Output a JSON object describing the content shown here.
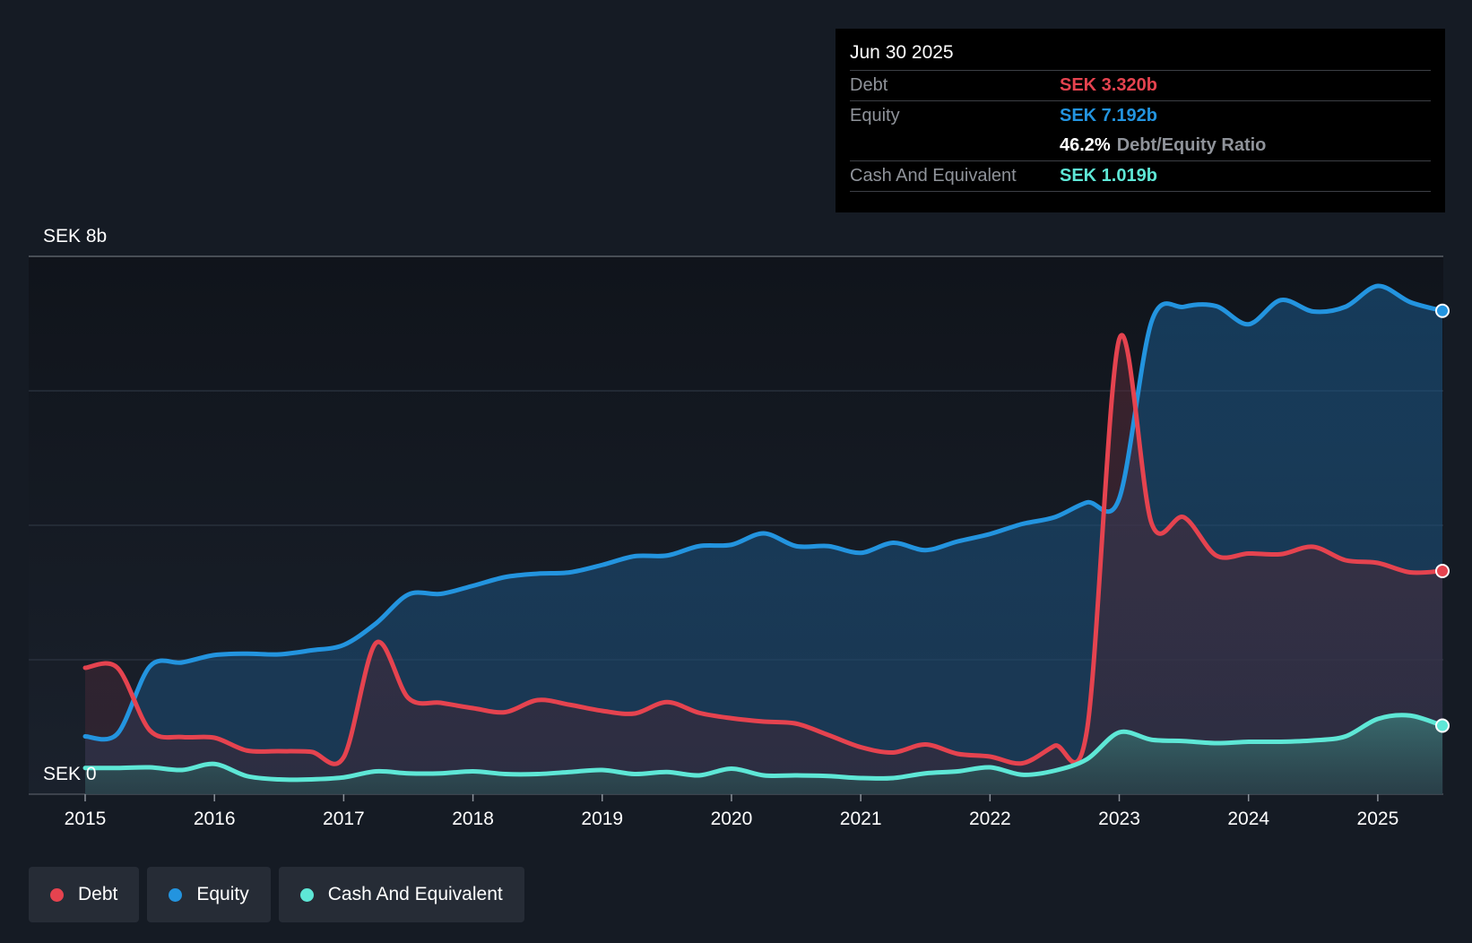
{
  "chart_data": {
    "type": "area",
    "title": "",
    "currency": "SEK",
    "y_top_label": "SEK 8b",
    "y_bottom_label": "SEK 0",
    "ylim": [
      0,
      8
    ],
    "xlim": [
      2015.0,
      2025.5
    ],
    "x_ticks": [
      "2015",
      "2016",
      "2017",
      "2018",
      "2019",
      "2020",
      "2021",
      "2022",
      "2023",
      "2024",
      "2025"
    ],
    "gridlines": [
      0,
      2,
      4,
      6,
      8
    ],
    "series": [
      {
        "name": "Debt",
        "color": "#e5434f",
        "points": [
          [
            2015.0,
            1.88
          ],
          [
            2015.25,
            1.88
          ],
          [
            2015.5,
            0.95
          ],
          [
            2015.75,
            0.85
          ],
          [
            2016.0,
            0.84
          ],
          [
            2016.25,
            0.65
          ],
          [
            2016.5,
            0.64
          ],
          [
            2016.75,
            0.63
          ],
          [
            2017.0,
            0.55
          ],
          [
            2017.25,
            2.25
          ],
          [
            2017.5,
            1.43
          ],
          [
            2017.75,
            1.36
          ],
          [
            2018.0,
            1.28
          ],
          [
            2018.25,
            1.22
          ],
          [
            2018.5,
            1.4
          ],
          [
            2018.75,
            1.33
          ],
          [
            2019.0,
            1.24
          ],
          [
            2019.25,
            1.2
          ],
          [
            2019.5,
            1.37
          ],
          [
            2019.75,
            1.21
          ],
          [
            2020.0,
            1.13
          ],
          [
            2020.25,
            1.08
          ],
          [
            2020.5,
            1.05
          ],
          [
            2020.75,
            0.88
          ],
          [
            2021.0,
            0.7
          ],
          [
            2021.25,
            0.62
          ],
          [
            2021.5,
            0.74
          ],
          [
            2021.75,
            0.6
          ],
          [
            2022.0,
            0.56
          ],
          [
            2022.25,
            0.46
          ],
          [
            2022.5,
            0.72
          ],
          [
            2022.75,
            0.95
          ],
          [
            2023.0,
            6.77
          ],
          [
            2023.25,
            4.03
          ],
          [
            2023.5,
            4.12
          ],
          [
            2023.75,
            3.55
          ],
          [
            2024.0,
            3.58
          ],
          [
            2024.25,
            3.57
          ],
          [
            2024.5,
            3.68
          ],
          [
            2024.75,
            3.48
          ],
          [
            2025.0,
            3.44
          ],
          [
            2025.25,
            3.3
          ],
          [
            2025.5,
            3.32
          ]
        ]
      },
      {
        "name": "Equity",
        "color": "#2394df",
        "points": [
          [
            2015.0,
            0.86
          ],
          [
            2015.25,
            0.9
          ],
          [
            2015.5,
            1.9
          ],
          [
            2015.75,
            1.96
          ],
          [
            2016.0,
            2.07
          ],
          [
            2016.25,
            2.09
          ],
          [
            2016.5,
            2.08
          ],
          [
            2016.75,
            2.14
          ],
          [
            2017.0,
            2.22
          ],
          [
            2017.25,
            2.54
          ],
          [
            2017.5,
            2.97
          ],
          [
            2017.75,
            2.98
          ],
          [
            2018.0,
            3.1
          ],
          [
            2018.25,
            3.23
          ],
          [
            2018.5,
            3.28
          ],
          [
            2018.75,
            3.3
          ],
          [
            2019.0,
            3.41
          ],
          [
            2019.25,
            3.54
          ],
          [
            2019.5,
            3.55
          ],
          [
            2019.75,
            3.69
          ],
          [
            2020.0,
            3.71
          ],
          [
            2020.25,
            3.88
          ],
          [
            2020.5,
            3.69
          ],
          [
            2020.75,
            3.69
          ],
          [
            2021.0,
            3.59
          ],
          [
            2021.25,
            3.74
          ],
          [
            2021.5,
            3.63
          ],
          [
            2021.75,
            3.76
          ],
          [
            2022.0,
            3.87
          ],
          [
            2022.25,
            4.02
          ],
          [
            2022.5,
            4.12
          ],
          [
            2022.75,
            4.34
          ],
          [
            2023.0,
            4.4
          ],
          [
            2023.25,
            7.03
          ],
          [
            2023.5,
            7.25
          ],
          [
            2023.75,
            7.26
          ],
          [
            2024.0,
            6.99
          ],
          [
            2024.25,
            7.35
          ],
          [
            2024.5,
            7.18
          ],
          [
            2024.75,
            7.25
          ],
          [
            2025.0,
            7.56
          ],
          [
            2025.25,
            7.32
          ],
          [
            2025.5,
            7.19
          ]
        ]
      },
      {
        "name": "Cash And Equivalent",
        "color": "#5ee7d6",
        "points": [
          [
            2015.0,
            0.39
          ],
          [
            2015.25,
            0.39
          ],
          [
            2015.5,
            0.4
          ],
          [
            2015.75,
            0.36
          ],
          [
            2016.0,
            0.45
          ],
          [
            2016.25,
            0.27
          ],
          [
            2016.5,
            0.22
          ],
          [
            2016.75,
            0.22
          ],
          [
            2017.0,
            0.25
          ],
          [
            2017.25,
            0.34
          ],
          [
            2017.5,
            0.31
          ],
          [
            2017.75,
            0.31
          ],
          [
            2018.0,
            0.34
          ],
          [
            2018.25,
            0.3
          ],
          [
            2018.5,
            0.3
          ],
          [
            2018.75,
            0.33
          ],
          [
            2019.0,
            0.36
          ],
          [
            2019.25,
            0.3
          ],
          [
            2019.5,
            0.33
          ],
          [
            2019.75,
            0.28
          ],
          [
            2020.0,
            0.38
          ],
          [
            2020.25,
            0.28
          ],
          [
            2020.5,
            0.28
          ],
          [
            2020.75,
            0.27
          ],
          [
            2021.0,
            0.24
          ],
          [
            2021.25,
            0.24
          ],
          [
            2021.5,
            0.31
          ],
          [
            2021.75,
            0.34
          ],
          [
            2022.0,
            0.4
          ],
          [
            2022.25,
            0.29
          ],
          [
            2022.5,
            0.35
          ],
          [
            2022.75,
            0.52
          ],
          [
            2023.0,
            0.92
          ],
          [
            2023.25,
            0.81
          ],
          [
            2023.5,
            0.79
          ],
          [
            2023.75,
            0.76
          ],
          [
            2024.0,
            0.78
          ],
          [
            2024.25,
            0.78
          ],
          [
            2024.5,
            0.8
          ],
          [
            2024.75,
            0.86
          ],
          [
            2025.0,
            1.12
          ],
          [
            2025.25,
            1.17
          ],
          [
            2025.5,
            1.02
          ]
        ]
      }
    ]
  },
  "tooltip": {
    "date": "Jun 30 2025",
    "debt_label": "Debt",
    "debt_value": "SEK 3.320b",
    "equity_label": "Equity",
    "equity_value": "SEK 7.192b",
    "ratio_value": "46.2%",
    "ratio_label": "Debt/Equity Ratio",
    "cash_label": "Cash And Equivalent",
    "cash_value": "SEK 1.019b"
  },
  "legend": [
    {
      "label": "Debt",
      "color": "#e5434f"
    },
    {
      "label": "Equity",
      "color": "#2394df"
    },
    {
      "label": "Cash And Equivalent",
      "color": "#5ee7d6"
    }
  ]
}
